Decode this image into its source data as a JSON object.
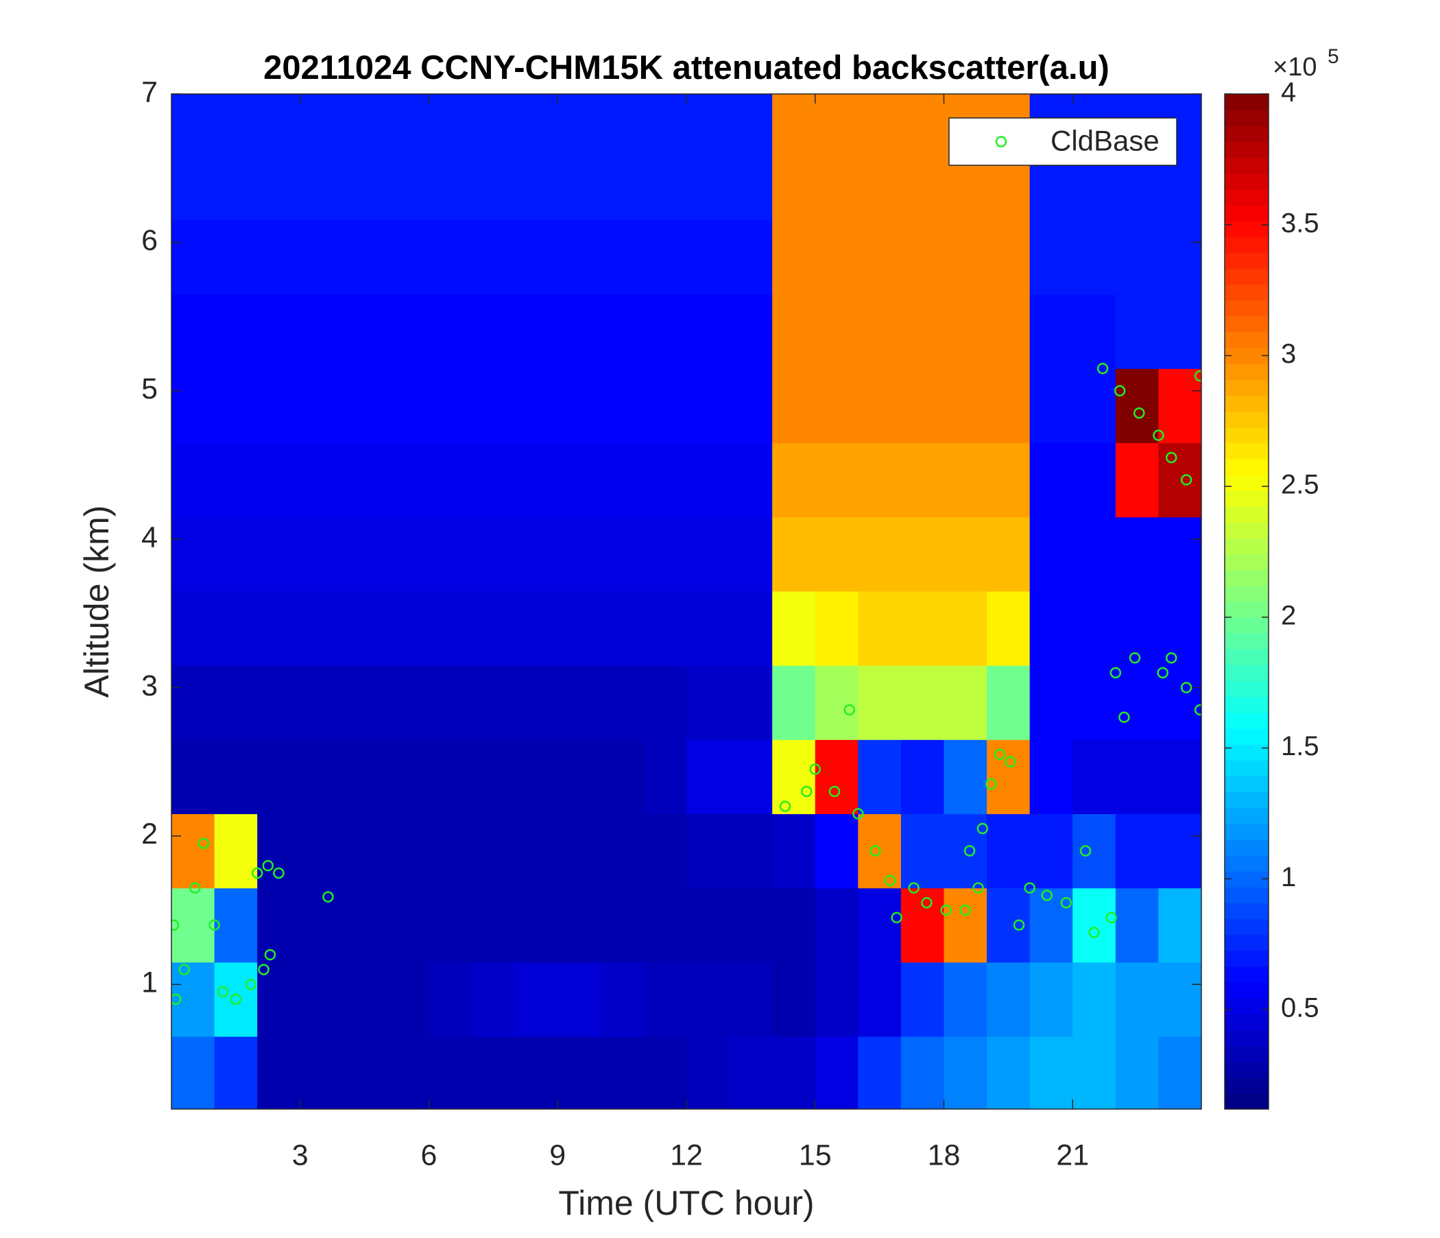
{
  "chart_data": {
    "type": "heatmap",
    "title": "20211024 CCNY-CHM15K attenuated backscatter(a.u)",
    "x_label": "Time (UTC hour)",
    "y_label": "Altitude (km)",
    "xlim": [
      0,
      24
    ],
    "xticks": [
      3,
      6,
      9,
      12,
      15,
      18,
      21
    ],
    "ylim": [
      0.16,
      7
    ],
    "yticks": [
      1,
      2,
      3,
      4,
      5,
      6,
      7
    ],
    "x": [
      0.5,
      1.5,
      2.5,
      3.5,
      4.5,
      5.5,
      6.5,
      7.5,
      8.5,
      9.5,
      10.5,
      11.5,
      12.5,
      13.5,
      14.5,
      15.5,
      16.5,
      17.5,
      18.5,
      19.5,
      20.5,
      21.5,
      22.5,
      23.5
    ],
    "y": [
      0.4,
      0.9,
      1.4,
      1.9,
      2.4,
      2.9,
      3.4,
      3.9,
      4.4,
      4.9,
      5.4,
      5.9,
      6.4,
      6.9
    ],
    "z": [
      [
        1.0,
        0.8,
        0.3,
        0.3,
        0.3,
        0.3,
        0.3,
        0.3,
        0.3,
        0.3,
        0.3,
        0.3,
        0.35,
        0.4,
        0.4,
        0.5,
        0.8,
        1.0,
        1.1,
        1.2,
        1.3,
        1.3,
        1.2,
        1.1
      ],
      [
        1.2,
        1.5,
        0.3,
        0.3,
        0.3,
        0.3,
        0.35,
        0.4,
        0.45,
        0.45,
        0.4,
        0.35,
        0.35,
        0.35,
        0.3,
        0.4,
        0.5,
        0.8,
        1.0,
        1.1,
        1.2,
        1.3,
        1.2,
        1.2
      ],
      [
        2.0,
        1.0,
        0.3,
        0.3,
        0.3,
        0.3,
        0.3,
        0.3,
        0.3,
        0.3,
        0.3,
        0.3,
        0.3,
        0.3,
        0.3,
        0.4,
        0.5,
        3.5,
        3.0,
        0.8,
        1.0,
        1.6,
        1.0,
        1.3
      ],
      [
        3.0,
        2.5,
        0.3,
        0.3,
        0.3,
        0.3,
        0.3,
        0.3,
        0.3,
        0.3,
        0.3,
        0.3,
        0.35,
        0.35,
        0.4,
        0.6,
        3.0,
        0.8,
        0.8,
        0.7,
        0.7,
        0.9,
        0.7,
        0.7
      ],
      [
        0.3,
        0.3,
        0.3,
        0.3,
        0.3,
        0.3,
        0.3,
        0.3,
        0.3,
        0.3,
        0.3,
        0.35,
        0.5,
        0.5,
        2.5,
        3.5,
        0.8,
        0.7,
        1.0,
        3.0,
        0.6,
        0.5,
        0.5,
        0.5
      ],
      [
        0.35,
        0.35,
        0.35,
        0.35,
        0.35,
        0.35,
        0.35,
        0.35,
        0.35,
        0.35,
        0.35,
        0.35,
        0.4,
        0.4,
        2.0,
        2.2,
        2.3,
        2.3,
        2.3,
        2.0,
        0.6,
        0.6,
        0.6,
        0.6
      ],
      [
        0.45,
        0.45,
        0.45,
        0.45,
        0.45,
        0.45,
        0.45,
        0.45,
        0.45,
        0.45,
        0.45,
        0.45,
        0.45,
        0.45,
        2.5,
        2.6,
        2.7,
        2.7,
        2.7,
        2.6,
        0.6,
        0.6,
        0.6,
        0.6
      ],
      [
        0.5,
        0.5,
        0.5,
        0.5,
        0.5,
        0.5,
        0.5,
        0.5,
        0.5,
        0.5,
        0.5,
        0.5,
        0.5,
        0.5,
        2.8,
        2.8,
        2.8,
        2.8,
        2.8,
        2.8,
        0.6,
        0.6,
        0.6,
        0.6
      ],
      [
        0.55,
        0.55,
        0.55,
        0.55,
        0.55,
        0.55,
        0.55,
        0.55,
        0.55,
        0.55,
        0.55,
        0.55,
        0.55,
        0.55,
        2.9,
        2.9,
        2.9,
        2.9,
        2.9,
        2.9,
        0.6,
        0.6,
        3.5,
        3.8
      ],
      [
        0.6,
        0.6,
        0.6,
        0.6,
        0.6,
        0.6,
        0.6,
        0.6,
        0.6,
        0.6,
        0.6,
        0.6,
        0.6,
        0.6,
        3.0,
        3.0,
        3.0,
        3.0,
        3.0,
        3.0,
        0.65,
        0.65,
        4.0,
        3.5
      ],
      [
        0.6,
        0.6,
        0.6,
        0.6,
        0.6,
        0.6,
        0.6,
        0.6,
        0.6,
        0.6,
        0.6,
        0.6,
        0.6,
        0.6,
        3.0,
        3.0,
        3.0,
        3.0,
        3.0,
        3.0,
        0.65,
        0.65,
        0.7,
        0.7
      ],
      [
        0.65,
        0.65,
        0.65,
        0.65,
        0.65,
        0.65,
        0.65,
        0.65,
        0.65,
        0.65,
        0.65,
        0.65,
        0.65,
        0.65,
        3.0,
        3.0,
        3.0,
        3.0,
        3.0,
        3.0,
        0.7,
        0.7,
        0.7,
        0.7
      ],
      [
        0.7,
        0.7,
        0.7,
        0.7,
        0.7,
        0.7,
        0.7,
        0.7,
        0.7,
        0.7,
        0.7,
        0.7,
        0.7,
        0.7,
        3.0,
        3.0,
        3.0,
        3.0,
        3.0,
        3.0,
        0.7,
        0.7,
        0.7,
        0.7
      ],
      [
        0.7,
        0.7,
        0.7,
        0.7,
        0.7,
        0.7,
        0.7,
        0.7,
        0.7,
        0.7,
        0.7,
        0.7,
        0.7,
        0.7,
        3.0,
        3.0,
        3.0,
        3.0,
        3.0,
        3.0,
        0.7,
        0.7,
        0.7,
        0.7
      ]
    ],
    "colormap": "jet",
    "clim": [
      0.12,
      4
    ],
    "cticks": [
      0.5,
      1,
      1.5,
      2,
      2.5,
      3,
      3.5,
      4
    ],
    "colorbar_scale_label": "×10",
    "colorbar_scale_exponent": "5",
    "legend": "northeast",
    "series": [
      {
        "name": "CldBase",
        "type": "scatter",
        "color": "#22ee22",
        "x": [
          0.1,
          0.05,
          0.3,
          0.55,
          0.75,
          1.0,
          1.2,
          1.5,
          1.85,
          2.15,
          2.3,
          2.0,
          2.25,
          2.5,
          3.65,
          14.3,
          14.8,
          15.0,
          15.45,
          15.8,
          16.0,
          16.4,
          16.75,
          16.9,
          17.3,
          17.6,
          18.05,
          18.5,
          18.6,
          18.8,
          18.9,
          19.1,
          19.3,
          19.55,
          19.75,
          20.0,
          20.4,
          20.85,
          21.3,
          21.5,
          21.9,
          21.7,
          22.1,
          22.55,
          23.0,
          23.3,
          23.65,
          23.97,
          22.0,
          22.2,
          22.45,
          23.1,
          23.3,
          23.65,
          23.97
        ],
        "values": [
          0.9,
          1.4,
          1.1,
          1.65,
          1.95,
          1.4,
          0.95,
          0.9,
          1.0,
          1.1,
          1.2,
          1.75,
          1.8,
          1.75,
          1.59,
          2.2,
          2.3,
          2.45,
          2.3,
          2.85,
          2.15,
          1.9,
          1.7,
          1.45,
          1.65,
          1.55,
          1.5,
          1.5,
          1.9,
          1.65,
          2.05,
          2.35,
          2.55,
          2.5,
          1.4,
          1.65,
          1.6,
          1.55,
          1.9,
          1.35,
          1.45,
          5.15,
          5.0,
          4.85,
          4.7,
          4.55,
          4.4,
          5.1,
          3.1,
          2.8,
          3.2,
          3.1,
          3.2,
          3.0,
          2.85
        ]
      }
    ]
  }
}
